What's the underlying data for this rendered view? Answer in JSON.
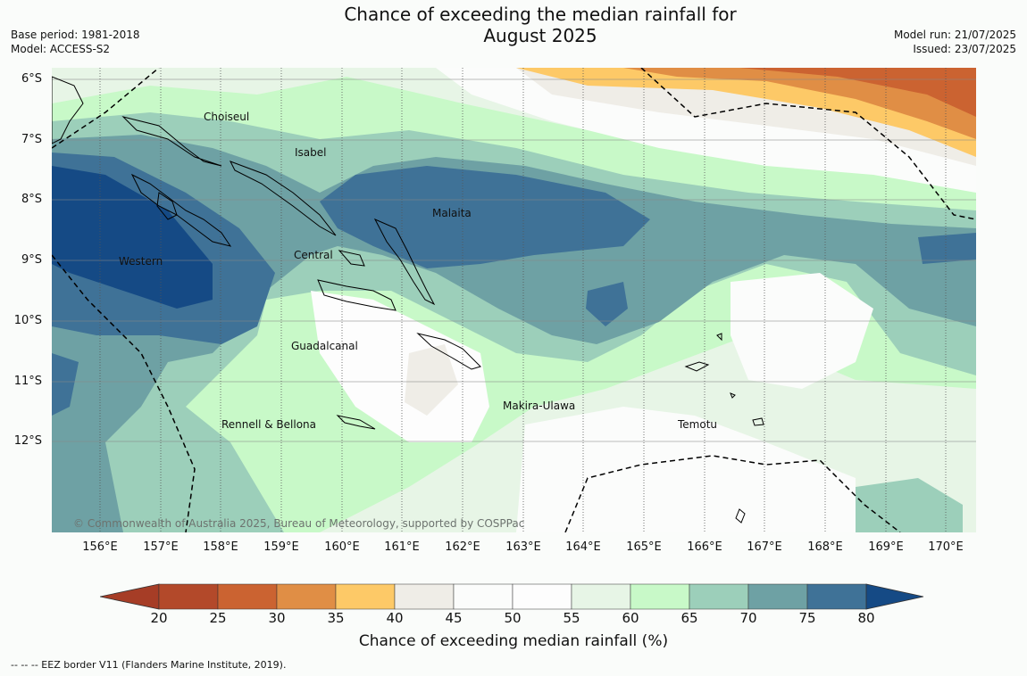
{
  "title": "Chance of exceeding the median rainfall for\nAugust 2025",
  "title_line1": "Chance of exceeding the median rainfall for",
  "title_line2": "August 2025",
  "meta": {
    "base_period": "Base period: 1981-2018",
    "model": "Model: ACCESS-S2",
    "model_run": "Model run: 21/07/2025",
    "issued": "Issued: 23/07/2025"
  },
  "latitude_labels": [
    "6°S",
    "7°S",
    "8°S",
    "9°S",
    "10°S",
    "11°S",
    "12°S"
  ],
  "longitude_labels": [
    "156°E",
    "157°E",
    "158°E",
    "159°E",
    "160°E",
    "161°E",
    "162°E",
    "163°E",
    "164°E",
    "165°E",
    "166°E",
    "167°E",
    "168°E",
    "169°E",
    "170°E"
  ],
  "places": {
    "choiseul": "Choiseul",
    "isabel": "Isabel",
    "malaita": "Malaita",
    "central": "Central",
    "western": "Western",
    "guadalcanal": "Guadalcanal",
    "makira": "Makira-Ulawa",
    "temotu": "Temotu",
    "rennell": "Rennell & Bellona"
  },
  "copyright": "© Commonwealth of Australia 2025, Bureau of Meteorology, supported by COSPPac",
  "colorbar": {
    "ticks": [
      "20",
      "25",
      "30",
      "35",
      "40",
      "45",
      "50",
      "55",
      "60",
      "65",
      "70",
      "75",
      "80"
    ],
    "colors": [
      "#a63d26",
      "#b3492a",
      "#cb6331",
      "#e08e45",
      "#fdc967",
      "#efede7",
      "#fbfcfb",
      "#fdfdfd",
      "#e7f5e6",
      "#c8f9c8",
      "#9ccfba",
      "#6ea1a4",
      "#3f7297",
      "#154a85"
    ],
    "title": "Chance of exceeding median rainfall (%)"
  },
  "footnote": "--  --  -- EEZ border V11 (Flanders Marine Institute, 2019)."
}
